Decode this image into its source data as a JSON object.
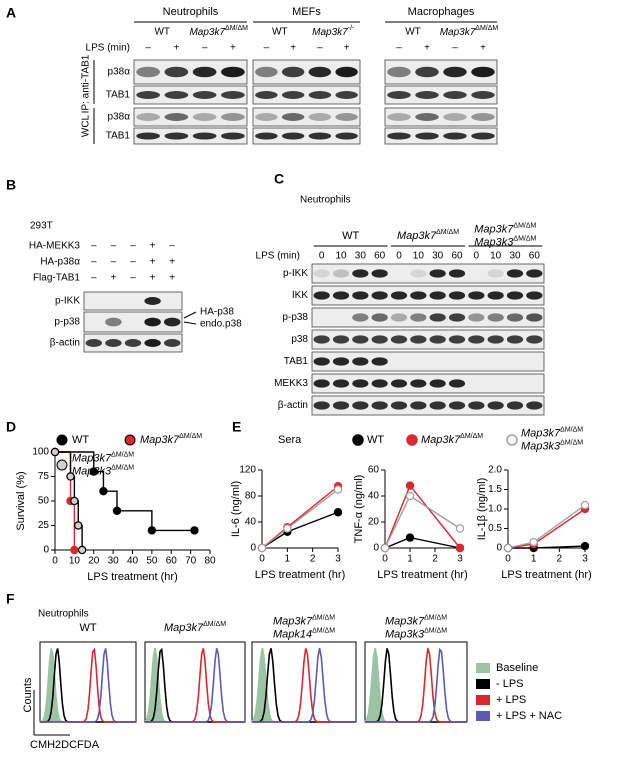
{
  "panel_labels": [
    "A",
    "B",
    "C",
    "D",
    "E",
    "F"
  ],
  "panel_a": {
    "cells": [
      "Neutrophils",
      "MEFs",
      "Macrophages"
    ],
    "genotypes": [
      "WT",
      {
        "gene": "Map3k7",
        "sup": "ΔM/ΔM"
      },
      "WT",
      {
        "gene": "Map3k7",
        "sup": "-/-"
      },
      "WT",
      {
        "gene": "Map3k7",
        "sup": "ΔM/ΔM"
      }
    ],
    "lps_label": "LPS (min)",
    "lps": [
      "–",
      "+",
      "–",
      "+",
      "–",
      "+",
      "–",
      "+",
      "–",
      "+",
      "–",
      "+"
    ],
    "ip_label": "IP: anti-TAB1",
    "wcl_label": "WCL",
    "rows": [
      "p38α",
      "TAB1",
      "p38α",
      "TAB1"
    ]
  },
  "panel_b": {
    "cell_line": "293T",
    "treatments": [
      {
        "label": "HA-MEKK3",
        "lanes": [
          "–",
          "–",
          "–",
          "+",
          "–"
        ]
      },
      {
        "label": "HA-p38α",
        "lanes": [
          "–",
          "–",
          "–",
          "+",
          "+"
        ]
      },
      {
        "label": "Flag-TAB1",
        "lanes": [
          "–",
          "+",
          "–",
          "+",
          "+"
        ]
      }
    ],
    "rows": [
      "p-IKK",
      "p-p38",
      "β-actin"
    ],
    "annotations": [
      "HA-p38",
      "endo.p38"
    ]
  },
  "panel_c": {
    "title": "Neutrophils",
    "groups": [
      "WT",
      {
        "gene": "Map3k7",
        "sup": "ΔM/ΔM"
      },
      [
        {
          "gene": "Map3k7",
          "sup": "ΔM/ΔM"
        },
        {
          "gene": "Map3k3",
          "sup": "ΔM/ΔM"
        }
      ]
    ],
    "lps_label": "LPS (min)",
    "times": [
      0,
      10,
      30,
      60,
      0,
      10,
      30,
      60,
      0,
      10,
      30,
      60
    ],
    "rows": [
      "p-IKK",
      "IKK",
      "p-p38",
      "p38",
      "TAB1",
      "MEKK3",
      "β-actin"
    ]
  },
  "panel_e": {
    "label": "Sera"
  },
  "panel_f": {
    "title": "Neutrophils",
    "columns": [
      "WT",
      {
        "gene": "Map3k7",
        "sup": "ΔM/ΔM"
      },
      [
        {
          "gene": "Map3k7",
          "sup": "ΔM/ΔM"
        },
        {
          "gene": "Mapk14",
          "sup": "ΔM/ΔM"
        }
      ],
      [
        {
          "gene": "Map3k7",
          "sup": "ΔM/ΔM"
        },
        {
          "gene": "Map3k3",
          "sup": "ΔM/ΔM"
        }
      ]
    ],
    "y_label": "Counts",
    "x_label": "CMH2DCFDA",
    "legend": [
      {
        "name": "Baseline",
        "color": "#9cc4a4"
      },
      {
        "name": "- LPS",
        "color": "#000000"
      },
      {
        "name": "+ LPS",
        "color": "#d9282f"
      },
      {
        "name": "+ LPS + NAC",
        "color": "#5b5bb5"
      }
    ]
  },
  "chart_data": [
    {
      "type": "step",
      "x_label": "LPS treatment (hr)",
      "y_label": "Survival (%)",
      "xlim": [
        0,
        80
      ],
      "xticks": [
        0,
        10,
        20,
        30,
        40,
        50,
        60,
        70,
        80
      ],
      "ylim": [
        0,
        100
      ],
      "yticks": [
        0,
        25,
        50,
        75,
        100
      ],
      "series": [
        {
          "name": "WT",
          "color": "#000000",
          "x": [
            0,
            20,
            25,
            32,
            50,
            72
          ],
          "values": [
            100,
            80,
            60,
            40,
            20,
            20
          ]
        },
        {
          "name": {
            "gene": "Map3k7",
            "sup": "ΔM/ΔM"
          },
          "color": "#d9282f",
          "x": [
            0,
            8,
            10
          ],
          "values": [
            100,
            50,
            0
          ]
        },
        {
          "name": [
            {
              "gene": "Map3k7",
              "sup": "ΔM/ΔM"
            },
            {
              "gene": "Map3k3",
              "sup": "ΔM/ΔM"
            }
          ],
          "color": "#d0d0d0",
          "x": [
            0,
            8,
            10,
            12,
            14
          ],
          "values": [
            100,
            75,
            50,
            25,
            0
          ]
        }
      ]
    },
    {
      "type": "line",
      "x_label": "LPS treatment (hr)",
      "y_label": "IL-6 (ng/ml)",
      "xlim": [
        0,
        3
      ],
      "xticks": [
        0,
        1,
        2,
        3
      ],
      "ylim": [
        0,
        120
      ],
      "yticks": [
        0,
        40,
        80,
        120
      ],
      "series": [
        {
          "name": "WT",
          "color": "#000000",
          "x": [
            0,
            1,
            3
          ],
          "values": [
            0,
            25,
            55
          ]
        },
        {
          "name": {
            "gene": "Map3k7",
            "sup": "ΔM/ΔM"
          },
          "color": "#d9282f",
          "x": [
            0,
            1,
            3
          ],
          "values": [
            0,
            32,
            95
          ]
        },
        {
          "name": [
            {
              "gene": "Map3k7",
              "sup": "ΔM/ΔM"
            },
            {
              "gene": "Map3k3",
              "sup": "ΔM/ΔM"
            }
          ],
          "color": "#a0a0a0",
          "x": [
            0,
            1,
            3
          ],
          "values": [
            0,
            30,
            90
          ]
        }
      ]
    },
    {
      "type": "line",
      "x_label": "LPS treatment (hr)",
      "y_label": "TNF-α (ng/ml)",
      "xlim": [
        0,
        3
      ],
      "xticks": [
        0,
        1,
        2,
        3
      ],
      "ylim": [
        0,
        60
      ],
      "yticks": [
        0,
        20,
        40,
        60
      ],
      "series": [
        {
          "color": "#000000",
          "x": [
            0,
            1,
            3
          ],
          "values": [
            0,
            8,
            0
          ]
        },
        {
          "color": "#d9282f",
          "x": [
            0,
            1,
            3
          ],
          "values": [
            0,
            48,
            0
          ]
        },
        {
          "color": "#a0a0a0",
          "x": [
            0,
            1,
            3
          ],
          "values": [
            0,
            40,
            15
          ]
        }
      ]
    },
    {
      "type": "line",
      "x_label": "LPS treatment (hr)",
      "y_label": "IL-1β (ng/ml)",
      "xlim": [
        0,
        3
      ],
      "xticks": [
        0,
        1,
        2,
        3
      ],
      "ylim": [
        0,
        2
      ],
      "yticks": [
        0,
        0.5,
        {
          "value": 1,
          "label": "1.0"
        },
        1.5,
        {
          "value": 2,
          "label": "2.0"
        }
      ],
      "series": [
        {
          "color": "#000000",
          "x": [
            0,
            1,
            3
          ],
          "values": [
            0,
            0,
            0.05
          ]
        },
        {
          "color": "#d9282f",
          "x": [
            0,
            1,
            3
          ],
          "values": [
            0,
            0.1,
            1.0
          ]
        },
        {
          "color": "#a0a0a0",
          "x": [
            0,
            1,
            3
          ],
          "values": [
            0,
            0.15,
            1.1
          ]
        }
      ]
    }
  ]
}
